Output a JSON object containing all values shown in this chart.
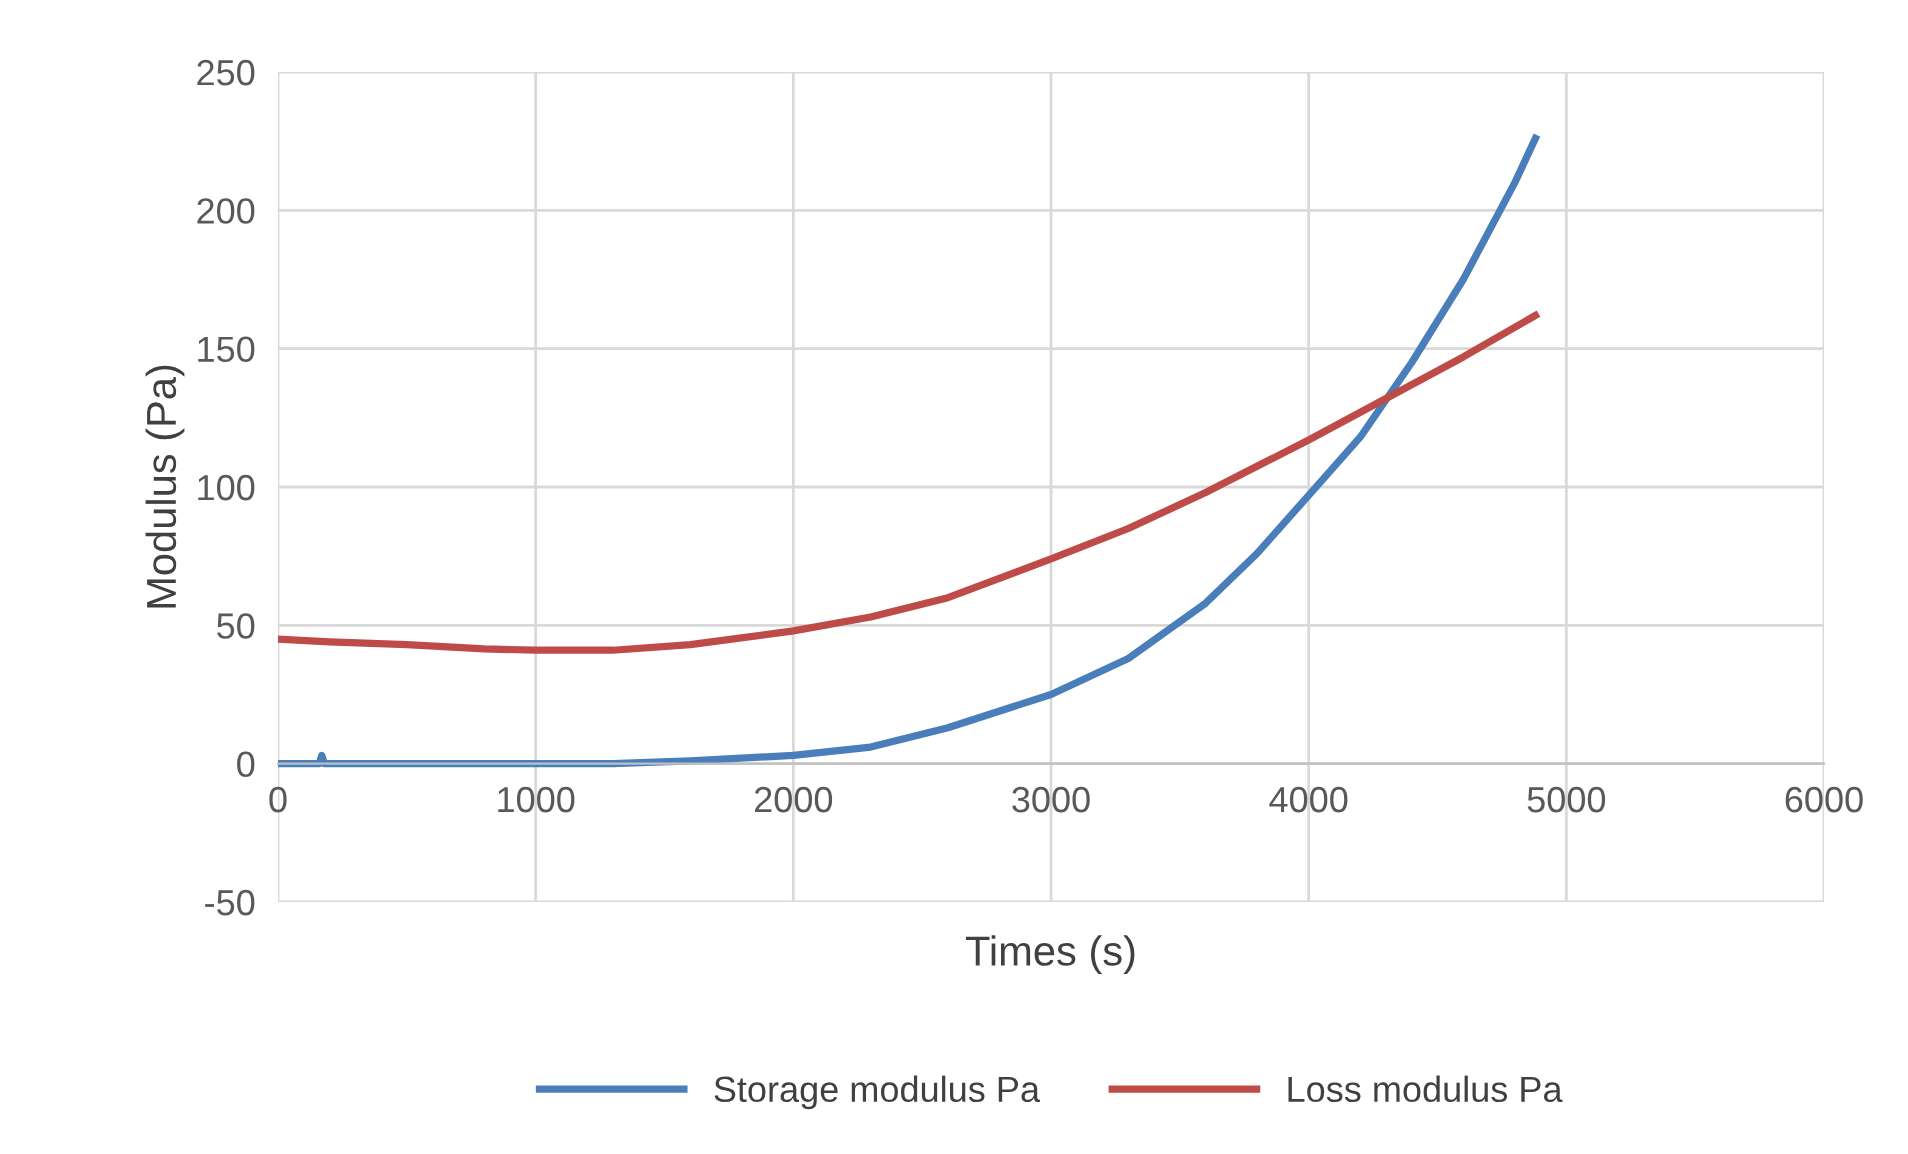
{
  "chart_data": {
    "type": "line",
    "xlabel": "Times (s)",
    "ylabel": "Modulus (Pa)",
    "xlim": [
      0,
      6000
    ],
    "ylim": [
      -50,
      250
    ],
    "xticks": [
      0,
      1000,
      2000,
      3000,
      4000,
      5000,
      6000
    ],
    "yticks": [
      -50,
      0,
      50,
      100,
      150,
      200,
      250
    ],
    "grid": true,
    "legend": "bottom",
    "marker": "none",
    "line_style": "solid",
    "series": [
      {
        "name": "Storage modulus Pa",
        "color": "#4a7ebb",
        "x": [
          0,
          100,
          160,
          170,
          180,
          300,
          600,
          1000,
          1300,
          1600,
          2000,
          2300,
          2600,
          3000,
          3300,
          3600,
          3800,
          4000,
          4200,
          4400,
          4600,
          4800,
          4880
        ],
        "values": [
          0,
          0,
          0,
          3,
          0,
          0,
          0,
          0,
          0,
          1,
          3,
          6,
          13,
          25,
          38,
          58,
          76,
          97,
          118,
          145,
          175,
          210,
          226
        ]
      },
      {
        "name": "Loss modulus Pa",
        "color": "#be4b48",
        "x": [
          0,
          200,
          500,
          800,
          1000,
          1300,
          1600,
          2000,
          2300,
          2600,
          3000,
          3300,
          3600,
          4000,
          4300,
          4600,
          4880
        ],
        "values": [
          45,
          44,
          43,
          41.5,
          41,
          41,
          43,
          48,
          53,
          60,
          74,
          85,
          98,
          117,
          132,
          147,
          162
        ]
      }
    ]
  }
}
